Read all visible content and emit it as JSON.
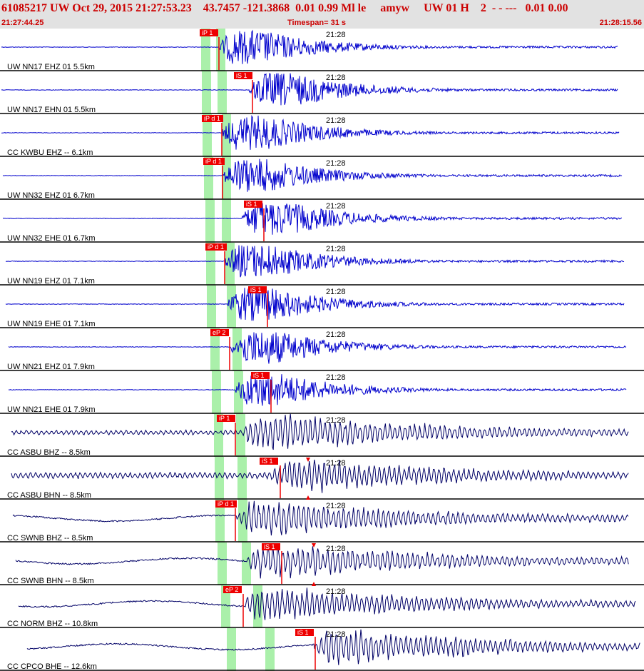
{
  "header": {
    "title": "61085217 UW Oct 29, 2015 21:27:53.23    43.7457 -121.3868  0.01 0.99 Ml le     amyw     UW 01 H    2  - - ---   0.01 0.00",
    "start_time": "21:27:44.25",
    "timespan": "Timespan=  31 s",
    "end_time": "21:28:15.56",
    "accent_color": "#cc0000",
    "header_bg": "#e2e2e2"
  },
  "colors": {
    "short_period_trace": "#0000cc",
    "broadband_trace": "#000066",
    "pick": "#ee0000",
    "window": "#aaf0aa",
    "separator": "#000000"
  },
  "traces": [
    {
      "label": "UW NN17 EHZ 01 5.5km",
      "time_label": "21:28",
      "phase": "iP 1",
      "kind": "sp"
    },
    {
      "label": "UW NN17 EHN 01 5.5km",
      "time_label": "21:28",
      "phase": "iS 1",
      "kind": "sp"
    },
    {
      "label": "CC KWBU EHZ -- 6.1km",
      "time_label": "21:28",
      "phase": "iP d 1",
      "kind": "sp"
    },
    {
      "label": "UW NN32 EHZ 01 6.7km",
      "time_label": "21:28",
      "phase": "iP d 1",
      "kind": "sp"
    },
    {
      "label": "UW NN32 EHE 01 6.7km",
      "time_label": "21:28",
      "phase": "iS 1",
      "kind": "sp"
    },
    {
      "label": "UW NN19 EHZ 01 7.1km",
      "time_label": "21:28",
      "phase": "iP d 1",
      "kind": "sp"
    },
    {
      "label": "UW NN19 EHE 01 7.1km",
      "time_label": "21:28",
      "phase": "iS 1",
      "kind": "sp"
    },
    {
      "label": "UW NN21 EHZ 01 7.9km",
      "time_label": "21:28",
      "phase": "eP 2",
      "kind": "sp"
    },
    {
      "label": "UW NN21 EHE 01 7.9km",
      "time_label": "21:28",
      "phase": "iS 1",
      "kind": "sp"
    },
    {
      "label": "CC ASBU BHZ -- 8.5km",
      "time_label": "21:28",
      "phase": "iP 1",
      "kind": "bb"
    },
    {
      "label": "CC ASBU BHN -- 8.5km",
      "time_label": "21:28",
      "phase": "iS 1",
      "kind": "bb"
    },
    {
      "label": "CC SWNB BHZ -- 8.5km",
      "time_label": "21:28",
      "phase": "iP d 1",
      "kind": "bb"
    },
    {
      "label": "CC SWNB BHN -- 8.5km",
      "time_label": "21:28",
      "phase": "iS 1",
      "kind": "bb"
    },
    {
      "label": "CC NORM BHZ -- 10.8km",
      "time_label": "21:28",
      "phase": "eP 2",
      "kind": "bb"
    },
    {
      "label": "CC CPCO BHE -- 12.6km",
      "time_label": "21:28",
      "phase": "iS 1",
      "kind": "bb"
    }
  ]
}
